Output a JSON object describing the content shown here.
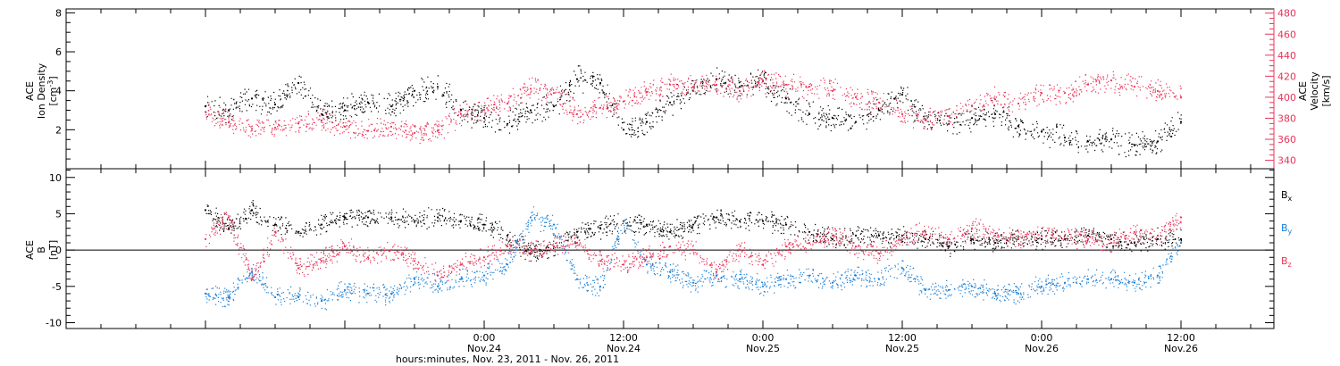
{
  "chart_data": [
    {
      "type": "scatter",
      "panel": "top",
      "ylabel_left": [
        "ACE",
        "Ion Density",
        "[cm",
        "-3",
        "]"
      ],
      "ylabel_right": [
        "ACE",
        "Velocity",
        "[km/s]"
      ],
      "y_left": {
        "ticks": [
          2,
          4,
          6,
          8
        ],
        "lim": [
          0,
          8.2
        ]
      },
      "y_right": {
        "ticks": [
          340,
          360,
          380,
          400,
          420,
          440,
          460,
          480
        ],
        "lim": [
          332,
          484
        ]
      },
      "colors": {
        "density": "#000000",
        "velocity": "#e8345a"
      },
      "series": [
        {
          "axis": "left",
          "color": "#000000",
          "x_hours": [
            0,
            2,
            4,
            6,
            8,
            10,
            12,
            14,
            16,
            18,
            20,
            22,
            24,
            26,
            28,
            30,
            32,
            34,
            36,
            38,
            40,
            42,
            44,
            46,
            48,
            50,
            52,
            54,
            56,
            58,
            60,
            62,
            64,
            66,
            68,
            70,
            72,
            74,
            76,
            78,
            80,
            82,
            84
          ],
          "y": [
            3.2,
            3.0,
            3.6,
            3.3,
            4.4,
            2.8,
            3.0,
            3.4,
            3.2,
            4.0,
            4.2,
            3.0,
            2.6,
            2.3,
            3.0,
            3.2,
            4.6,
            4.4,
            2.0,
            2.4,
            3.4,
            4.0,
            4.6,
            4.2,
            4.5,
            3.6,
            2.8,
            2.6,
            2.4,
            3.0,
            3.8,
            2.5,
            2.3,
            2.6,
            2.8,
            2.2,
            1.9,
            1.6,
            1.4,
            1.5,
            1.2,
            1.4,
            2.4
          ]
        },
        {
          "axis": "right",
          "color": "#e8345a",
          "x_hours": [
            0,
            2,
            4,
            6,
            8,
            10,
            12,
            14,
            16,
            18,
            20,
            22,
            24,
            26,
            28,
            30,
            32,
            34,
            36,
            38,
            40,
            42,
            44,
            46,
            48,
            50,
            52,
            54,
            56,
            58,
            60,
            62,
            64,
            66,
            68,
            70,
            72,
            74,
            76,
            78,
            80,
            82,
            84
          ],
          "y": [
            386,
            376,
            370,
            371,
            375,
            378,
            372,
            368,
            372,
            366,
            368,
            384,
            388,
            394,
            408,
            404,
            384,
            390,
            396,
            405,
            412,
            410,
            412,
            406,
            416,
            412,
            410,
            406,
            400,
            395,
            384,
            378,
            382,
            392,
            398,
            394,
            404,
            404,
            412,
            416,
            410,
            406,
            400
          ]
        }
      ]
    },
    {
      "type": "scatter",
      "panel": "bottom",
      "ylabel_left": [
        "ACE",
        "B",
        "[nT]"
      ],
      "y_left": {
        "ticks": [
          -10,
          -5,
          0,
          5,
          10
        ],
        "lim": [
          -10.8,
          11.2
        ]
      },
      "x_ticks": [
        {
          "hour": 24,
          "time": "0:00",
          "date": "Nov.24"
        },
        {
          "hour": 36,
          "time": "12:00",
          "date": "Nov.24"
        },
        {
          "hour": 48,
          "time": "0:00",
          "date": "Nov.25"
        },
        {
          "hour": 60,
          "time": "12:00",
          "date": "Nov.25"
        },
        {
          "hour": 72,
          "time": "0:00",
          "date": "Nov.26"
        },
        {
          "hour": 84,
          "time": "12:00",
          "date": "Nov.26"
        }
      ],
      "legend": [
        {
          "name": "B",
          "sub": "x",
          "color": "#000000"
        },
        {
          "name": "B",
          "sub": "y",
          "color": "#1a7fd6"
        },
        {
          "name": "B",
          "sub": "z",
          "color": "#e8345a"
        }
      ],
      "series": [
        {
          "name": "Bx",
          "color": "#000000",
          "x_hours": [
            0,
            2,
            4,
            6,
            8,
            10,
            12,
            14,
            16,
            18,
            20,
            22,
            24,
            26,
            28,
            30,
            32,
            34,
            36,
            38,
            40,
            42,
            44,
            46,
            48,
            50,
            52,
            54,
            56,
            58,
            60,
            62,
            64,
            66,
            68,
            70,
            72,
            74,
            76,
            78,
            80,
            82,
            84
          ],
          "y": [
            5.5,
            3.0,
            5.5,
            3.5,
            2.5,
            3.5,
            4.5,
            4.5,
            4.5,
            4.0,
            4.5,
            4.0,
            3.5,
            2.0,
            -0.5,
            0.5,
            2.5,
            3.0,
            4.0,
            3.5,
            2.5,
            3.5,
            4.5,
            4.0,
            4.0,
            3.5,
            2.5,
            1.5,
            2.0,
            2.0,
            2.0,
            1.5,
            0.5,
            1.5,
            1.0,
            1.5,
            1.5,
            1.5,
            2.0,
            1.5,
            1.0,
            1.5,
            1.5
          ]
        },
        {
          "name": "By",
          "color": "#1a7fd6",
          "x_hours": [
            0,
            2,
            4,
            6,
            8,
            10,
            12,
            14,
            16,
            18,
            20,
            22,
            24,
            26,
            28,
            30,
            32,
            34,
            36,
            38,
            40,
            42,
            44,
            46,
            48,
            50,
            52,
            54,
            56,
            58,
            60,
            62,
            64,
            66,
            68,
            70,
            72,
            74,
            76,
            78,
            80,
            82,
            84
          ],
          "y": [
            -6.0,
            -6.5,
            -3.0,
            -6.5,
            -6.5,
            -7.0,
            -5.5,
            -6.0,
            -6.0,
            -4.0,
            -5.0,
            -4.0,
            -3.5,
            -2.0,
            4.5,
            3.5,
            -4.0,
            -5.0,
            4.0,
            -2.0,
            -3.0,
            -4.5,
            -3.5,
            -4.0,
            -5.0,
            -4.0,
            -3.5,
            -4.5,
            -3.5,
            -4.0,
            -2.5,
            -5.5,
            -5.5,
            -5.0,
            -6.0,
            -6.0,
            -5.0,
            -4.5,
            -4.0,
            -4.0,
            -4.5,
            -3.5,
            1.0
          ]
        },
        {
          "name": "Bz",
          "color": "#e8345a",
          "x_hours": [
            0,
            2,
            4,
            6,
            8,
            10,
            12,
            14,
            16,
            18,
            20,
            22,
            24,
            26,
            28,
            30,
            32,
            34,
            36,
            38,
            40,
            42,
            44,
            46,
            48,
            50,
            52,
            54,
            56,
            58,
            60,
            62,
            64,
            66,
            68,
            70,
            72,
            74,
            76,
            78,
            80,
            82,
            84
          ],
          "y": [
            1.5,
            4.5,
            -4.0,
            2.5,
            -2.5,
            -1.5,
            0.5,
            -1.0,
            0.0,
            -1.5,
            -3.5,
            -2.0,
            -1.0,
            0.5,
            0.0,
            0.5,
            1.0,
            -1.5,
            -2.0,
            -1.0,
            0.5,
            0.0,
            -3.0,
            0.0,
            -2.0,
            0.5,
            1.0,
            2.0,
            0.5,
            -0.5,
            1.5,
            2.5,
            1.5,
            3.0,
            2.0,
            1.5,
            2.0,
            2.0,
            1.5,
            1.0,
            2.5,
            2.0,
            4.5
          ]
        }
      ]
    }
  ],
  "x_axis": {
    "title": "hours:minutes, Nov. 23, 2011 - Nov. 26, 2011",
    "range_hours": [
      -12,
      92
    ]
  }
}
